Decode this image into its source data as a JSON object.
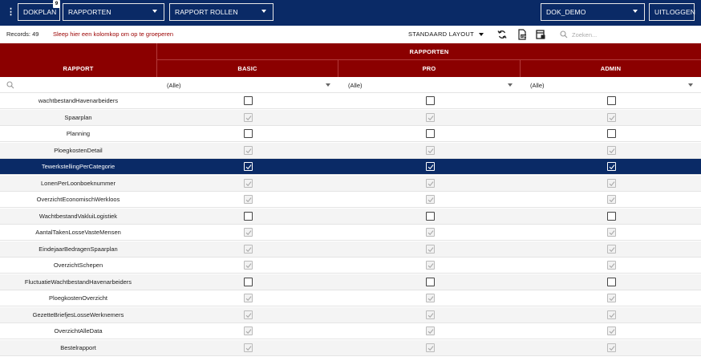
{
  "topbar": {
    "menu_glyph": "⋮",
    "app_button": "DOKPLAN",
    "badge_count": "9",
    "module_select": "RAPPORTEN",
    "view_select": "RAPPORT ROLLEN",
    "environment_select": "DOK_DEMO",
    "logout_button": "UITLOGGEN"
  },
  "infobar": {
    "records": "Records: 49",
    "group_hint": "Sleep hier een kolomkop om op te groeperen",
    "layout_select": "STANDAARD LAYOUT",
    "search_placeholder": "Zoeken...",
    "icons": [
      "refresh-icon",
      "export-pdf-icon",
      "column-chooser-icon",
      "search-icon"
    ]
  },
  "grid": {
    "col_rapport": "RAPPORT",
    "band_rapporten": "RAPPORTEN",
    "col_basic": "BASIC",
    "col_pro": "PRO",
    "col_admin": "ADMIN",
    "filter_basic": "(Alle)",
    "filter_pro": "(Alle)",
    "filter_admin": "(Alle)",
    "selected_row_index": 4,
    "rows": [
      {
        "name": "wachtbestandHavenarbeiders",
        "basic": false,
        "pro": false,
        "admin": false,
        "enabled": true
      },
      {
        "name": "Spaarplan",
        "basic": true,
        "pro": true,
        "admin": true,
        "enabled": false
      },
      {
        "name": "Planning",
        "basic": false,
        "pro": false,
        "admin": false,
        "enabled": true
      },
      {
        "name": "PloegkostenDetail",
        "basic": true,
        "pro": true,
        "admin": true,
        "enabled": false
      },
      {
        "name": "TewerkstellingPerCategorie",
        "basic": true,
        "pro": true,
        "admin": true,
        "enabled": true
      },
      {
        "name": "LonenPerLoonboeknummer",
        "basic": true,
        "pro": true,
        "admin": true,
        "enabled": false
      },
      {
        "name": "OverzichtEconomischWerkloos",
        "basic": true,
        "pro": true,
        "admin": true,
        "enabled": false
      },
      {
        "name": "WachtbestandVakluiLogistiek",
        "basic": false,
        "pro": false,
        "admin": false,
        "enabled": true
      },
      {
        "name": "AantalTakenLosseVasteMensen",
        "basic": true,
        "pro": true,
        "admin": true,
        "enabled": false
      },
      {
        "name": "EindejaarBedragenSpaarplan",
        "basic": true,
        "pro": true,
        "admin": true,
        "enabled": false
      },
      {
        "name": "OverzichtSchepen",
        "basic": true,
        "pro": true,
        "admin": true,
        "enabled": false
      },
      {
        "name": "FluctuatieWachtbestandHavenarbeiders",
        "basic": false,
        "pro": false,
        "admin": false,
        "enabled": true
      },
      {
        "name": "PloegkostenOverzicht",
        "basic": true,
        "pro": true,
        "admin": true,
        "enabled": false
      },
      {
        "name": "GezetteBriefjesLosseWerknemers",
        "basic": true,
        "pro": true,
        "admin": true,
        "enabled": false
      },
      {
        "name": "OverzichtAlleData",
        "basic": true,
        "pro": true,
        "admin": true,
        "enabled": false
      },
      {
        "name": "Bestelrapport",
        "basic": true,
        "pro": true,
        "admin": true,
        "enabled": false
      }
    ]
  },
  "colors": {
    "navy": "#0a2a66",
    "header_red": "#8b0000",
    "hint_red": "#9b0000",
    "alt_row": "#f4f4f4"
  }
}
